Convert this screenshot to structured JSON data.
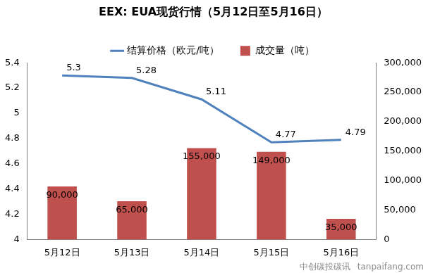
{
  "chart_data": {
    "type": "bar",
    "title": "EEX: EUA现货行情（5月12日至5月16日）",
    "categories": [
      "5月12日",
      "5月13日",
      "5月14日",
      "5月15日",
      "5月16日"
    ],
    "series": [
      {
        "name": "成交量（吨）",
        "type": "bar",
        "axis": "y2",
        "color": "#c0504d",
        "values": [
          90000,
          65000,
          155000,
          149000,
          35000
        ],
        "value_labels": [
          "90,000",
          "65,000",
          "155,000",
          "149,000",
          "35,000"
        ]
      },
      {
        "name": "结算价格（欧元/吨）",
        "type": "line",
        "color": "#4f81bd",
        "marker": "none",
        "line_style": "solid",
        "values": [
          5.3,
          5.28,
          5.11,
          4.77,
          4.79
        ]
      }
    ],
    "ylim": [
      4,
      5.4
    ],
    "yticks": [
      4,
      4.2,
      4.4,
      4.6,
      4.8,
      5,
      5.2,
      5.4
    ],
    "y2lim": [
      0,
      300000
    ],
    "y2ticks": [
      {
        "value": 0,
        "label": "0"
      },
      {
        "value": 50000,
        "label": "50,000"
      },
      {
        "value": 100000,
        "label": "100,000"
      },
      {
        "value": 150000,
        "label": "150,000"
      },
      {
        "value": 200000,
        "label": "200,000"
      },
      {
        "value": 250000,
        "label": "250,000"
      },
      {
        "value": 300000,
        "label": "300,000"
      }
    ],
    "legend": "top",
    "grid": false,
    "data_labels": true,
    "annotations": [
      "中创碳投碳讯",
      "tanpaifang.com"
    ]
  }
}
